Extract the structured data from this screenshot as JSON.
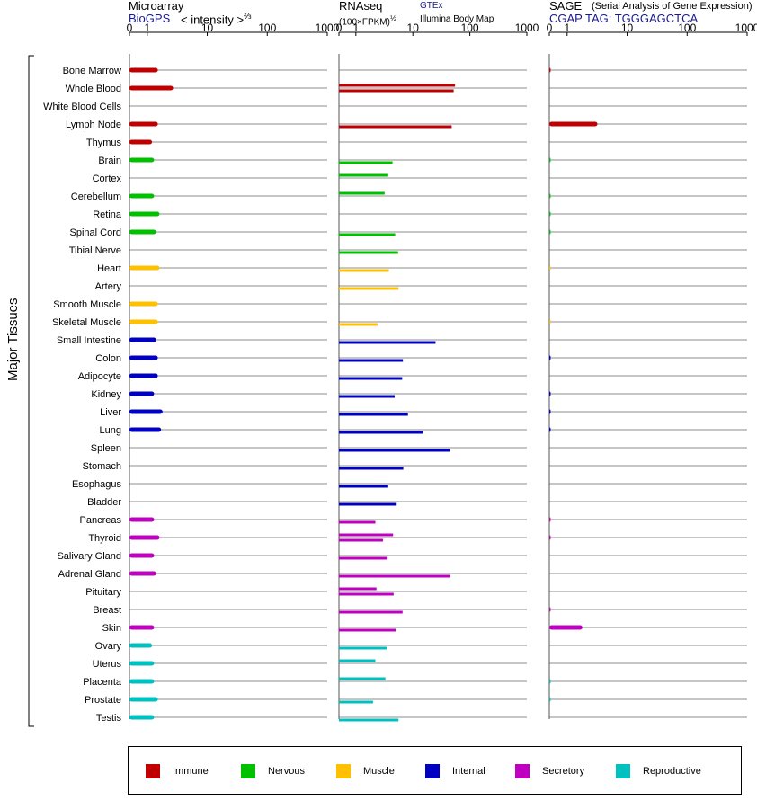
{
  "headers": {
    "microarray": {
      "title": "Microarray",
      "source": "BioGPS",
      "unit": "< intensity >",
      "unit_exp": "⅔"
    },
    "rnaseq": {
      "title": "RNAseq",
      "unit": "(100×FPKM)",
      "unit_exp": "½",
      "source1": "GTEx",
      "source2": "Illumina Body Map"
    },
    "sage": {
      "title": "SAGE",
      "subtitle": "(Serial Analysis of Gene Expression)",
      "tag": "CGAP TAG: TGGGAGCTCA"
    }
  },
  "side_label": "Major Tissues",
  "legend": [
    {
      "name": "Immune",
      "color": "#c00000"
    },
    {
      "name": "Nervous",
      "color": "#00c000"
    },
    {
      "name": "Muscle",
      "color": "#ffc000"
    },
    {
      "name": "Internal",
      "color": "#0000c0"
    },
    {
      "name": "Secretory",
      "color": "#c000c0"
    },
    {
      "name": "Reproductive",
      "color": "#00c0c0"
    }
  ],
  "chart_data": {
    "type": "bar",
    "orientation": "horizontal",
    "axis_ticks": [
      "0",
      "1",
      "10",
      "100",
      "1000"
    ],
    "axis_tick_values": [
      0,
      1,
      10,
      100,
      1000
    ],
    "xlim": [
      0,
      1000
    ],
    "categories": [
      "Bone Marrow",
      "Whole Blood",
      "White Blood Cells",
      "Lymph Node",
      "Thymus",
      "Brain",
      "Cortex",
      "Cerebellum",
      "Retina",
      "Spinal Cord",
      "Tibial Nerve",
      "Heart",
      "Artery",
      "Smooth Muscle",
      "Skeletal Muscle",
      "Small Intestine",
      "Colon",
      "Adipocyte",
      "Kidney",
      "Liver",
      "Lung",
      "Spleen",
      "Stomach",
      "Esophagus",
      "Bladder",
      "Pancreas",
      "Thyroid",
      "Salivary Gland",
      "Adrenal Gland",
      "Pituitary",
      "Breast",
      "Skin",
      "Ovary",
      "Uterus",
      "Placenta",
      "Prostate",
      "Testis"
    ],
    "groups": [
      "Immune",
      "Immune",
      "Immune",
      "Immune",
      "Immune",
      "Nervous",
      "Nervous",
      "Nervous",
      "Nervous",
      "Nervous",
      "Nervous",
      "Muscle",
      "Muscle",
      "Muscle",
      "Muscle",
      "Internal",
      "Internal",
      "Internal",
      "Internal",
      "Internal",
      "Internal",
      "Internal",
      "Internal",
      "Internal",
      "Internal",
      "Secretory",
      "Secretory",
      "Secretory",
      "Secretory",
      "Secretory",
      "Secretory",
      "Secretory",
      "Reproductive",
      "Reproductive",
      "Reproductive",
      "Reproductive",
      "Reproductive"
    ],
    "series": [
      {
        "name": "Microarray",
        "values": [
          1.5,
          2.7,
          null,
          1.5,
          1.2,
          1.3,
          null,
          1.3,
          1.6,
          1.4,
          null,
          1.6,
          null,
          1.5,
          1.5,
          1.4,
          1.5,
          1.5,
          1.3,
          1.8,
          1.7,
          null,
          null,
          null,
          null,
          1.3,
          1.6,
          1.3,
          1.4,
          null,
          null,
          1.3,
          1.2,
          1.3,
          1.3,
          1.5,
          1.3
        ]
      },
      {
        "name": "GTEx",
        "values": [
          null,
          55,
          null,
          null,
          null,
          null,
          3.7,
          3.2,
          null,
          null,
          null,
          null,
          null,
          null,
          null,
          null,
          null,
          null,
          null,
          null,
          null,
          null,
          null,
          null,
          null,
          null,
          4.5,
          null,
          null,
          2.3,
          null,
          null,
          null,
          2.2,
          3.3,
          null,
          null
        ]
      },
      {
        "name": "Illumina Body Map",
        "values": [
          null,
          52,
          null,
          48,
          null,
          4.4,
          null,
          null,
          null,
          4.9,
          5.5,
          3.8,
          5.6,
          null,
          2.4,
          25,
          6.7,
          6.5,
          4.8,
          8.2,
          15,
          45,
          6.8,
          3.7,
          5.2,
          2.2,
          3.0,
          3.6,
          45,
          4.6,
          6.6,
          5.0,
          3.5,
          null,
          null,
          2.0,
          5.6
        ]
      },
      {
        "name": "SAGE",
        "values": [
          0.05,
          null,
          null,
          3.2,
          null,
          0.05,
          null,
          0.05,
          0.05,
          0.05,
          null,
          0.03,
          null,
          null,
          0.03,
          null,
          0.05,
          null,
          0.05,
          0.05,
          0.05,
          null,
          null,
          null,
          null,
          0.05,
          0.05,
          null,
          null,
          null,
          0.05,
          1.8,
          null,
          null,
          0.05,
          0.05,
          null
        ]
      }
    ]
  }
}
